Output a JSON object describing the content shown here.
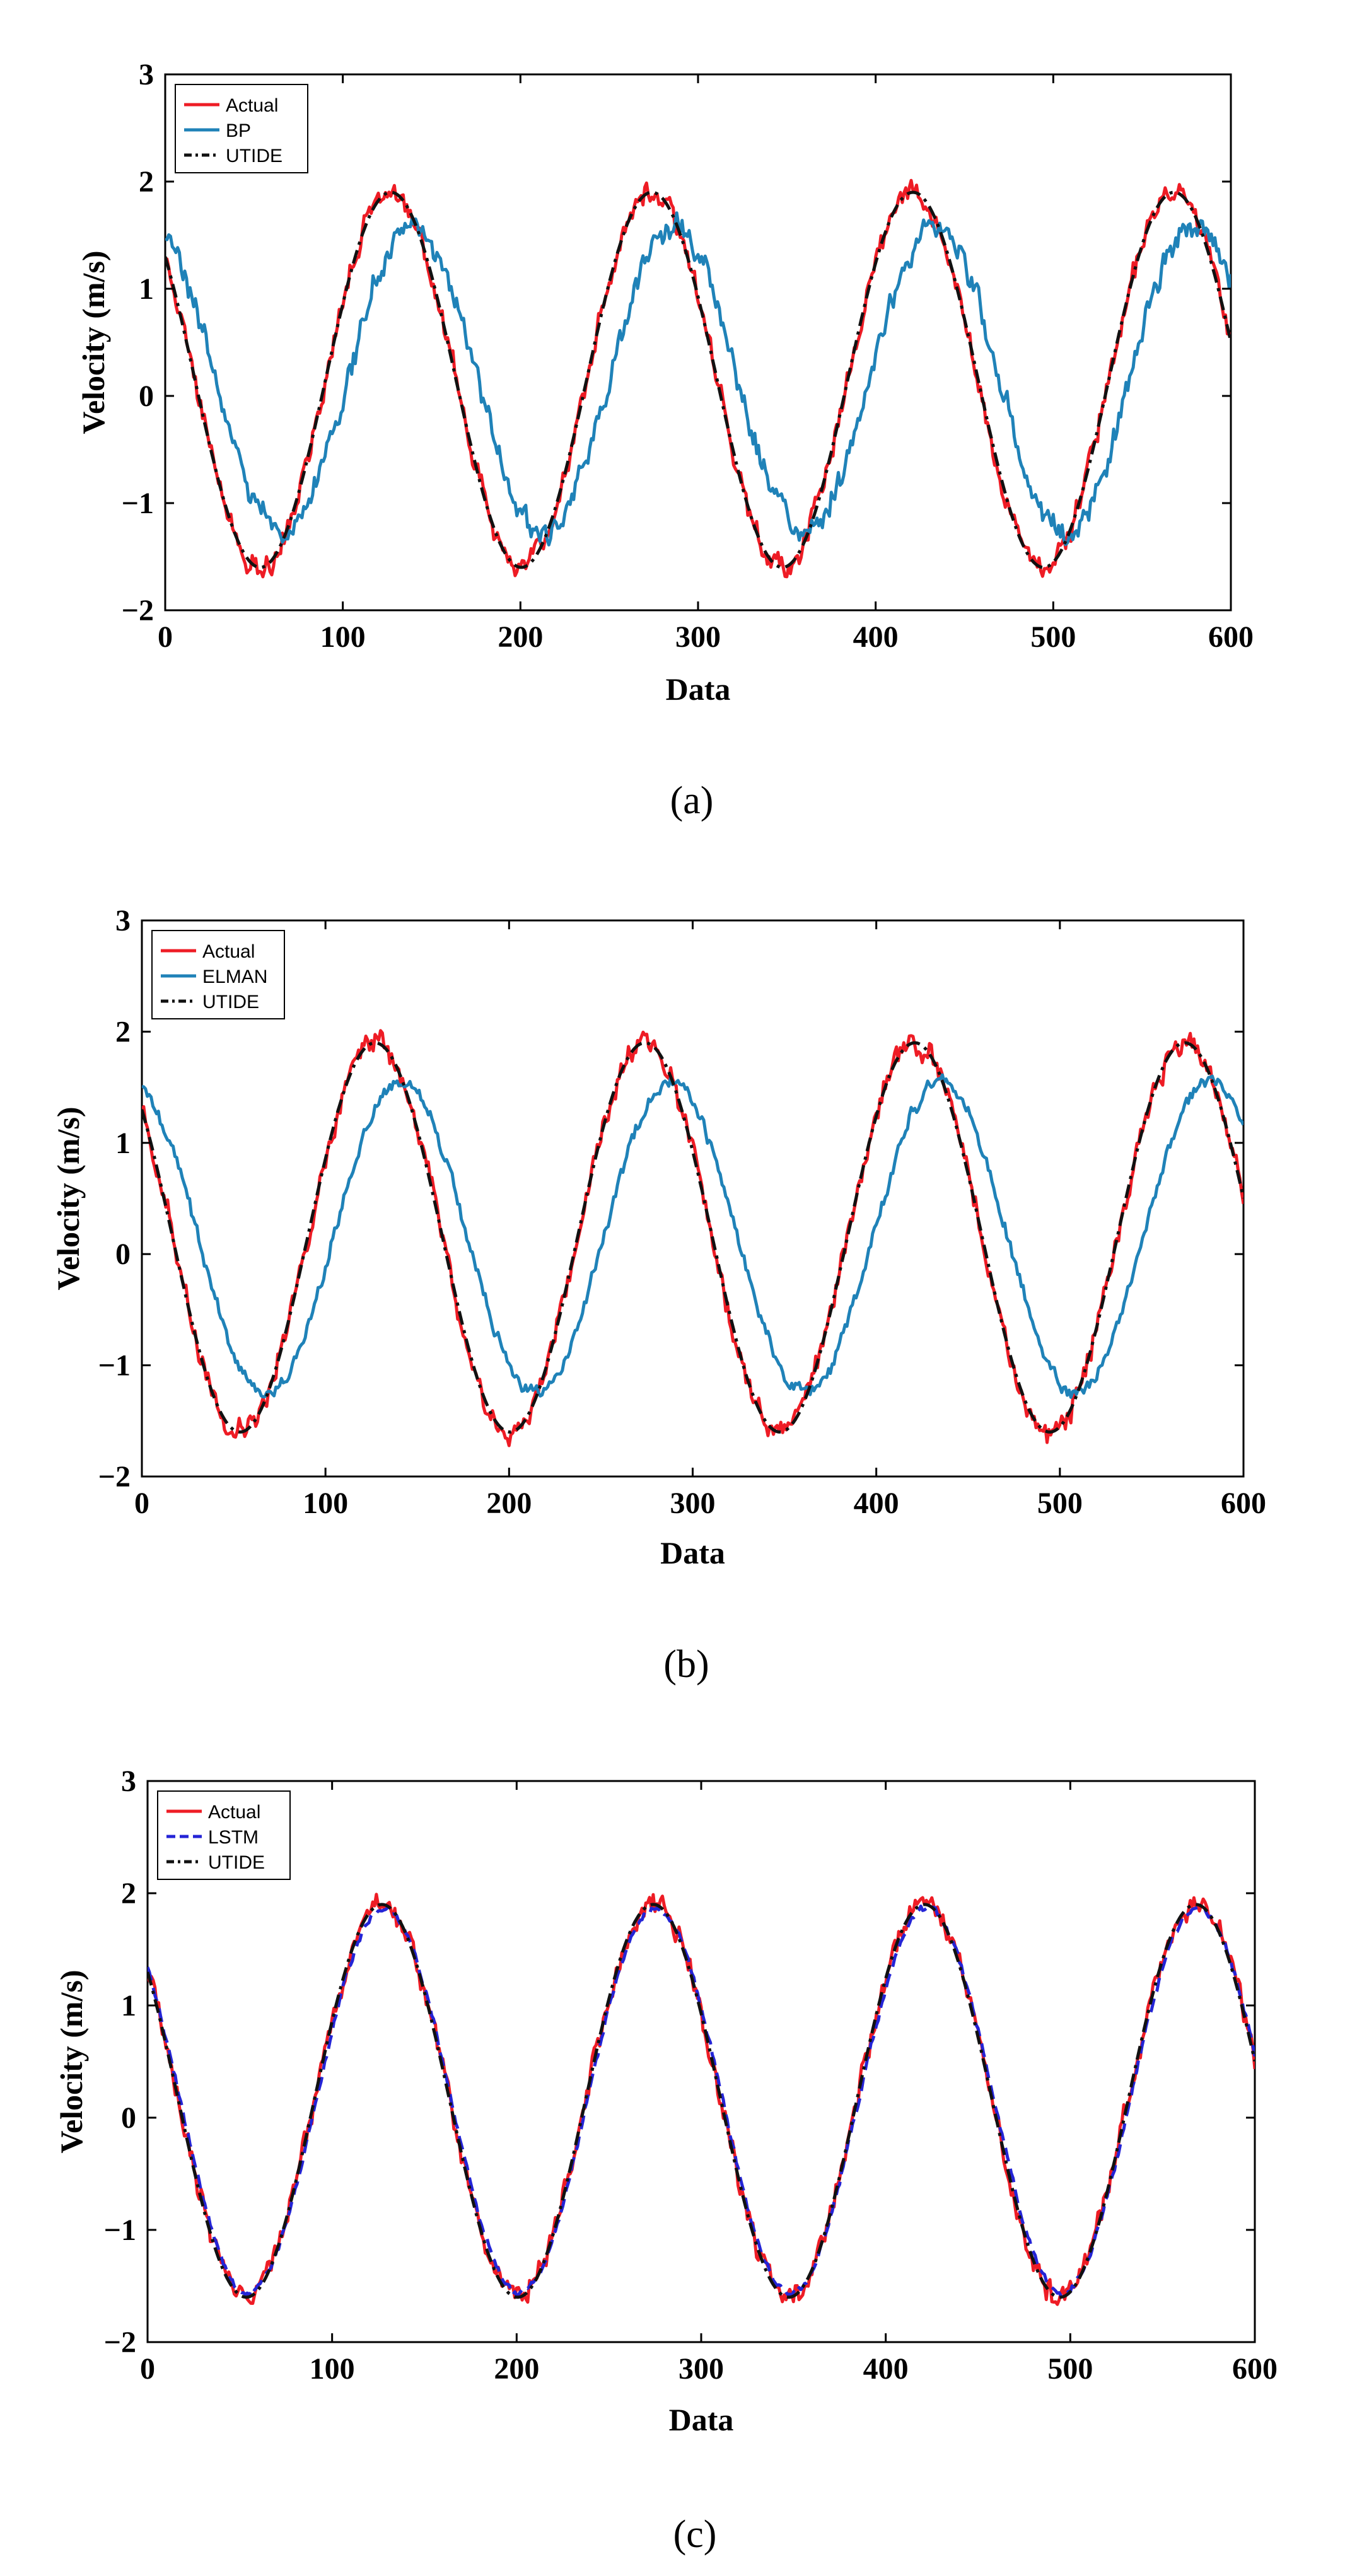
{
  "chart_data": [
    {
      "type": "line",
      "panel": "a",
      "caption": "(a)",
      "xlabel": "Data",
      "ylabel": "Velocity (m/s)",
      "xlim": [
        0,
        600
      ],
      "ylim": [
        -2,
        3
      ],
      "xticks": [
        "0",
        "100",
        "200",
        "300",
        "400",
        "500",
        "600"
      ],
      "yticks": [
        "−2",
        "−1",
        "0",
        "1",
        "2",
        "3"
      ],
      "legend_position": "top-left",
      "underlying_model": {
        "period": 147,
        "amplitude": 1.75,
        "phase_peak_at": 127,
        "offset": 0.15
      },
      "series": [
        {
          "name": "Actual",
          "color": "#ee1c25",
          "style": "solid",
          "lag": 0,
          "amp_scale": 1.0,
          "noise": 0.14
        },
        {
          "name": "BP",
          "color": "#1f82b8",
          "style": "solid",
          "lag": 12,
          "amp_scale": 0.82,
          "noise": 0.16
        },
        {
          "name": "UTIDE",
          "color": "#111111",
          "style": "dashdot",
          "lag": 0,
          "amp_scale": 1.0,
          "noise": 0.0
        }
      ]
    },
    {
      "type": "line",
      "panel": "b",
      "caption": "(b)",
      "xlabel": "Data",
      "ylabel": "Velocity (m/s)",
      "xlim": [
        0,
        600
      ],
      "ylim": [
        -2,
        3
      ],
      "xticks": [
        "0",
        "100",
        "200",
        "300",
        "400",
        "500",
        "600"
      ],
      "yticks": [
        "−2",
        "−1",
        "0",
        "1",
        "2",
        "3"
      ],
      "legend_position": "top-left",
      "underlying_model": {
        "period": 147,
        "amplitude": 1.75,
        "phase_peak_at": 127,
        "offset": 0.15
      },
      "series": [
        {
          "name": "Actual",
          "color": "#ee1c25",
          "style": "solid",
          "lag": 0,
          "amp_scale": 1.0,
          "noise": 0.14
        },
        {
          "name": "ELMAN",
          "color": "#1f82b8",
          "style": "solid",
          "lag": 14,
          "amp_scale": 0.8,
          "noise": 0.08
        },
        {
          "name": "UTIDE",
          "color": "#111111",
          "style": "dashdot",
          "lag": 0,
          "amp_scale": 1.0,
          "noise": 0.0
        }
      ]
    },
    {
      "type": "line",
      "panel": "c",
      "caption": "(c)",
      "xlabel": "Data",
      "ylabel": "Velocity (m/s)",
      "xlim": [
        0,
        600
      ],
      "ylim": [
        -2,
        3
      ],
      "xticks": [
        "0",
        "100",
        "200",
        "300",
        "400",
        "500",
        "600"
      ],
      "yticks": [
        "−2",
        "−1",
        "0",
        "1",
        "2",
        "3"
      ],
      "legend_position": "top-left",
      "underlying_model": {
        "period": 147,
        "amplitude": 1.75,
        "phase_peak_at": 127,
        "offset": 0.15
      },
      "series": [
        {
          "name": "Actual",
          "color": "#ee1c25",
          "style": "solid",
          "lag": 0,
          "amp_scale": 1.0,
          "noise": 0.14
        },
        {
          "name": "LSTM",
          "color": "#2424d6",
          "style": "dashed",
          "lag": 1,
          "amp_scale": 0.98,
          "noise": 0.04
        },
        {
          "name": "UTIDE",
          "color": "#111111",
          "style": "dashdot",
          "lag": 0,
          "amp_scale": 1.0,
          "noise": 0.0
        }
      ]
    }
  ]
}
